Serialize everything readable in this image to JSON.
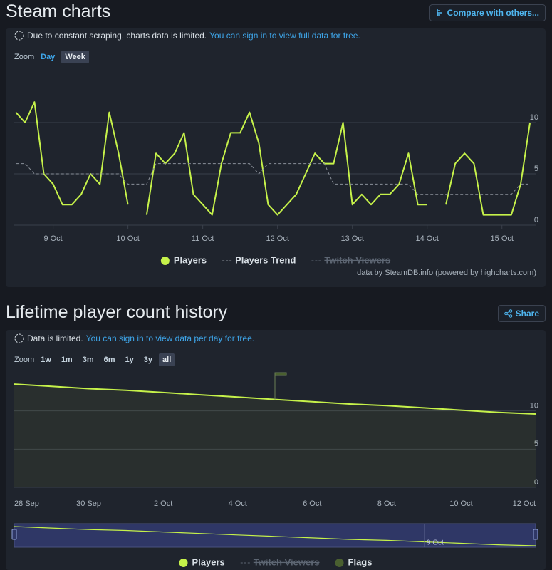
{
  "sections": [
    {
      "title": "Steam charts",
      "button": "Compare with others...",
      "notice": "Due to constant scraping, charts data is limited.",
      "notice_link": "You can sign in to view full data for free.",
      "zoom_label": "Zoom",
      "zoom_options": [
        "Day",
        "Week"
      ],
      "zoom_selected": 1,
      "credit": "data by SteamDB.info (powered by highcharts.com)"
    },
    {
      "title": "Lifetime player count history",
      "button": "Share",
      "notice": "Data is limited.",
      "notice_link": "You can sign in to view data per day for free.",
      "zoom_label": "Zoom",
      "zoom_options": [
        "1w",
        "1m",
        "3m",
        "6m",
        "1y",
        "3y",
        "all"
      ],
      "zoom_selected": 6
    }
  ],
  "chart_data": [
    {
      "type": "line",
      "x": [
        8.5,
        8.625,
        8.75,
        8.875,
        9,
        9.125,
        9.25,
        9.375,
        9.5,
        9.625,
        9.75,
        9.875,
        10,
        10.125,
        10.25,
        10.375,
        10.5,
        10.625,
        10.75,
        10.875,
        11,
        11.125,
        11.25,
        11.375,
        11.5,
        11.625,
        11.75,
        11.875,
        12,
        12.125,
        12.25,
        12.375,
        12.5,
        12.625,
        12.75,
        12.875,
        13,
        13.125,
        13.25,
        13.375,
        13.5,
        13.625,
        13.75,
        13.875,
        14,
        14.125,
        14.25,
        14.375,
        14.5,
        14.625,
        14.75,
        14.875,
        15,
        15.125,
        15.25,
        15.375
      ],
      "series": [
        {
          "name": "Players",
          "color": "#c6f24a",
          "values": [
            11,
            10,
            12,
            5,
            4,
            2,
            2,
            3,
            5,
            4,
            11,
            7,
            2,
            null,
            1,
            7,
            6,
            7,
            9,
            3,
            2,
            1,
            6,
            9,
            9,
            11,
            8,
            2,
            1,
            2,
            3,
            5,
            7,
            6,
            6,
            10,
            2,
            3,
            2,
            3,
            3,
            4,
            7,
            2,
            2,
            null,
            2,
            6,
            7,
            6,
            1,
            1,
            1,
            1,
            4,
            10
          ]
        },
        {
          "name": "Players Trend",
          "color": "#8a9099",
          "dashed": true,
          "values": [
            6,
            6,
            5,
            5,
            5,
            5,
            5,
            5,
            5,
            5,
            5,
            5,
            4,
            4,
            4,
            6,
            6,
            6,
            6,
            6,
            6,
            6,
            6,
            6,
            6,
            6,
            5,
            6,
            6,
            6,
            6,
            6,
            6,
            6,
            4,
            4,
            4,
            4,
            4,
            4,
            4,
            4,
            4,
            3,
            3,
            3,
            3,
            3,
            3,
            3,
            3,
            3,
            3,
            3,
            4,
            4
          ]
        }
      ],
      "hidden_series": [
        {
          "name": "Twitch Viewers",
          "color": "#5d6673"
        }
      ],
      "xlim": [
        8.48,
        15.45
      ],
      "xticks": [
        {
          "value": 9,
          "label": "9 Oct"
        },
        {
          "value": 10,
          "label": "10 Oct"
        },
        {
          "value": 11,
          "label": "11 Oct"
        },
        {
          "value": 12,
          "label": "12 Oct"
        },
        {
          "value": 13,
          "label": "13 Oct"
        },
        {
          "value": 14,
          "label": "14 Oct"
        },
        {
          "value": 15,
          "label": "15 Oct"
        }
      ],
      "ylim": [
        0,
        15
      ],
      "yticks": [
        0,
        5,
        10
      ],
      "grid": true
    },
    {
      "type": "line",
      "x": [
        "28 Sep",
        "29 Sep",
        "30 Sep",
        "1 Oct",
        "2 Oct",
        "3 Oct",
        "4 Oct",
        "5 Oct",
        "6 Oct",
        "7 Oct",
        "8 Oct",
        "9 Oct",
        "10 Oct",
        "11 Oct",
        "12 Oct"
      ],
      "series": [
        {
          "name": "Players",
          "color": "#c6f24a",
          "values": [
            13.5,
            13.2,
            12.9,
            12.7,
            12.4,
            12.1,
            11.8,
            11.5,
            11.2,
            10.9,
            10.7,
            10.4,
            10.1,
            9.8,
            9.6
          ]
        }
      ],
      "hidden_series": [
        {
          "name": "Twitch Viewers",
          "color": "#5d6673"
        }
      ],
      "flags": {
        "name": "Flags",
        "color": "#4a6030",
        "x": [
          "5 Oct"
        ]
      },
      "xticks": [
        "28 Sep",
        "30 Sep",
        "2 Oct",
        "4 Oct",
        "6 Oct",
        "8 Oct",
        "10 Oct",
        "12 Oct"
      ],
      "ylim": [
        0,
        15
      ],
      "yticks": [
        0,
        5,
        10
      ],
      "grid": true,
      "navigator_label": "9 Oct"
    }
  ]
}
